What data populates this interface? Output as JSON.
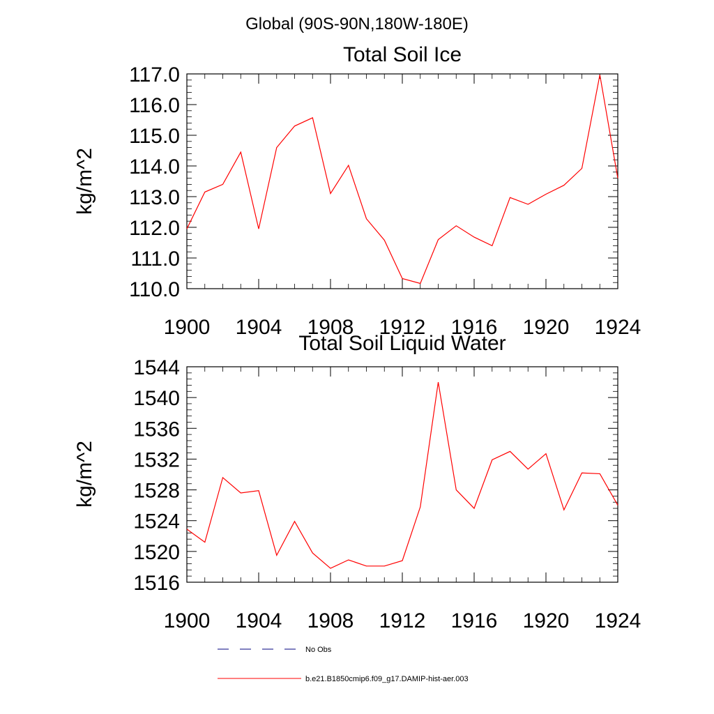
{
  "page_title": "Global (90S-90N,180W-180E)",
  "legend": {
    "entries": [
      {
        "label": "No Obs",
        "color": "#000080",
        "style": "dashed"
      },
      {
        "label": "b.e21.B1850cmip6.f09_g17.DAMIP-hist-aer.003",
        "color": "#ff0000",
        "style": "solid"
      }
    ]
  },
  "chart_data": [
    {
      "type": "line",
      "title": "Total Soil Ice",
      "ylabel": "kg/m^2",
      "xlabel": "",
      "xlim": [
        1900,
        1924
      ],
      "ylim": [
        110,
        117
      ],
      "grid": false,
      "xticks": [
        1900,
        1904,
        1908,
        1912,
        1916,
        1920,
        1924
      ],
      "xtick_labels": [
        "1900",
        "1904",
        "1908",
        "1912",
        "1916",
        "1920",
        "1924"
      ],
      "yticks": [
        110,
        111,
        112,
        113,
        114,
        115,
        116,
        117
      ],
      "ytick_labels": [
        "110.0",
        "111.0",
        "112.0",
        "113.0",
        "114.0",
        "115.0",
        "116.0",
        "117.0"
      ],
      "x": [
        1900,
        1901,
        1902,
        1903,
        1904,
        1905,
        1906,
        1907,
        1908,
        1909,
        1910,
        1911,
        1912,
        1913,
        1914,
        1915,
        1916,
        1917,
        1918,
        1919,
        1920,
        1921,
        1922,
        1923,
        1924
      ],
      "series": [
        {
          "color": "#ff0000",
          "values": [
            111.95,
            113.15,
            113.4,
            114.45,
            111.95,
            114.6,
            115.3,
            115.57,
            113.1,
            114.02,
            112.28,
            111.58,
            110.33,
            110.17,
            111.6,
            112.05,
            111.68,
            111.4,
            112.97,
            112.75,
            113.08,
            113.37,
            113.92,
            116.97,
            113.6
          ]
        }
      ]
    },
    {
      "type": "line",
      "title": "Total Soil Liquid Water",
      "ylabel": "kg/m^2",
      "xlabel": "",
      "xlim": [
        1900,
        1924
      ],
      "ylim": [
        1516,
        1544
      ],
      "grid": false,
      "xticks": [
        1900,
        1904,
        1908,
        1912,
        1916,
        1920,
        1924
      ],
      "xtick_labels": [
        "1900",
        "1904",
        "1908",
        "1912",
        "1916",
        "1920",
        "1924"
      ],
      "yticks": [
        1516,
        1520,
        1524,
        1528,
        1532,
        1536,
        1540,
        1544
      ],
      "ytick_labels": [
        "1516",
        "1520",
        "1524",
        "1528",
        "1532",
        "1536",
        "1540",
        "1544"
      ],
      "x": [
        1900,
        1901,
        1902,
        1903,
        1904,
        1905,
        1906,
        1907,
        1908,
        1909,
        1910,
        1911,
        1912,
        1913,
        1914,
        1915,
        1916,
        1917,
        1918,
        1919,
        1920,
        1921,
        1922,
        1923,
        1924
      ],
      "series": [
        {
          "color": "#ff0000",
          "values": [
            1522.9,
            1521.2,
            1529.6,
            1527.6,
            1527.9,
            1519.5,
            1523.9,
            1519.8,
            1517.8,
            1518.9,
            1518.1,
            1518.1,
            1518.8,
            1525.8,
            1542,
            1528,
            1525.6,
            1531.9,
            1533,
            1530.7,
            1532.7,
            1525.4,
            1530.2,
            1530.1,
            1526
          ]
        }
      ]
    }
  ]
}
